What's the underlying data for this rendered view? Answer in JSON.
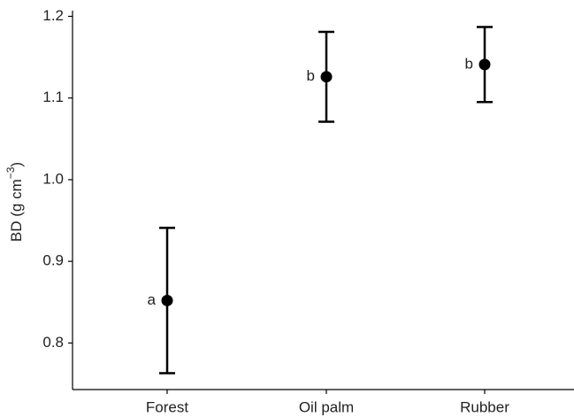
{
  "chart_data": {
    "type": "errorbar",
    "y_label": {
      "text": "BD (g cm",
      "superscript": "−3",
      "suffix": ")"
    },
    "categories": [
      "Forest",
      "Oil palm",
      "Rubber"
    ],
    "values": [
      0.852,
      1.126,
      1.141
    ],
    "errors": [
      0.089,
      0.055,
      0.046
    ],
    "group_letters": [
      "a",
      "b",
      "b"
    ],
    "color": "#000000",
    "ylim": [
      0.743,
      1.207
    ],
    "yticks": [
      0.8,
      0.9,
      {
        "value": 1.0,
        "label": "1.0"
      },
      1.1,
      1.2
    ],
    "grid": false
  }
}
